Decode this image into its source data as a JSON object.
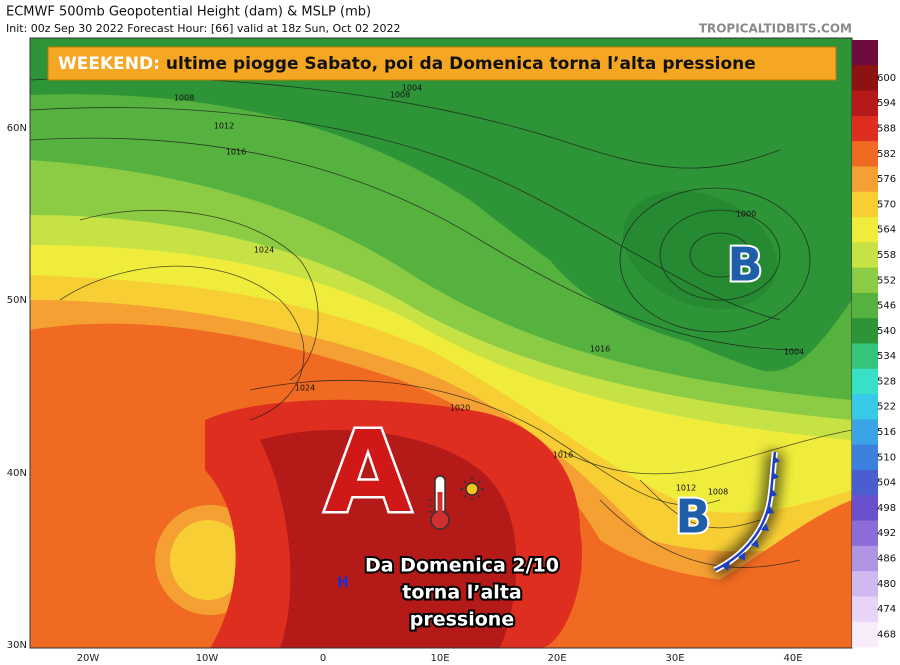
{
  "header": {
    "title": "ECMWF 500mb Geopotential Height (dam) & MSLP (mb)",
    "subtitle": "Init: 00z Sep 30 2022   Forecast Hour: [66]   valid at 18z Sun, Oct 02 2022",
    "watermark": "TROPICALTIDBITS.COM"
  },
  "banner": {
    "prefix": "WEEKEND:",
    "text": "ultime piogge Sabato, poi da Domenica torna l’alta pressione"
  },
  "colorbar": {
    "levels": [
      600,
      594,
      588,
      582,
      576,
      570,
      564,
      558,
      552,
      546,
      540,
      534,
      528,
      522,
      516,
      510,
      504,
      498,
      492,
      486,
      480,
      474,
      468
    ],
    "colors": [
      "#6e0c3e",
      "#8e1212",
      "#b41a18",
      "#de2e20",
      "#f06a22",
      "#f5a032",
      "#f7cf34",
      "#f0ec3c",
      "#c6e244",
      "#8ccc44",
      "#56b23e",
      "#2e9438",
      "#34c47a",
      "#38e0c8",
      "#38c8e8",
      "#3aa4e4",
      "#3a80dc",
      "#4a5ed0",
      "#6a50cc",
      "#8e6cd8",
      "#b294e4",
      "#d2b8f0",
      "#e8d4f6",
      "#f8ecfc"
    ]
  },
  "axes": {
    "lat_labels": [
      "60N",
      "50N",
      "40N",
      "30N"
    ],
    "lon_labels": [
      "20W",
      "10W",
      "0",
      "10E",
      "20E",
      "30E",
      "40E"
    ]
  },
  "isobars": [
    "1004",
    "1008",
    "1008",
    "1012",
    "1016",
    "1024",
    "1024",
    "1020",
    "1016",
    "1016",
    "1012",
    "1008",
    "1000",
    "1004"
  ],
  "symbols": {
    "high": "A",
    "low_north": "B",
    "low_south": "B",
    "h_marker": "H"
  },
  "caption": [
    "Da Domenica 2/10",
    "torna l’alta",
    "pressione"
  ]
}
